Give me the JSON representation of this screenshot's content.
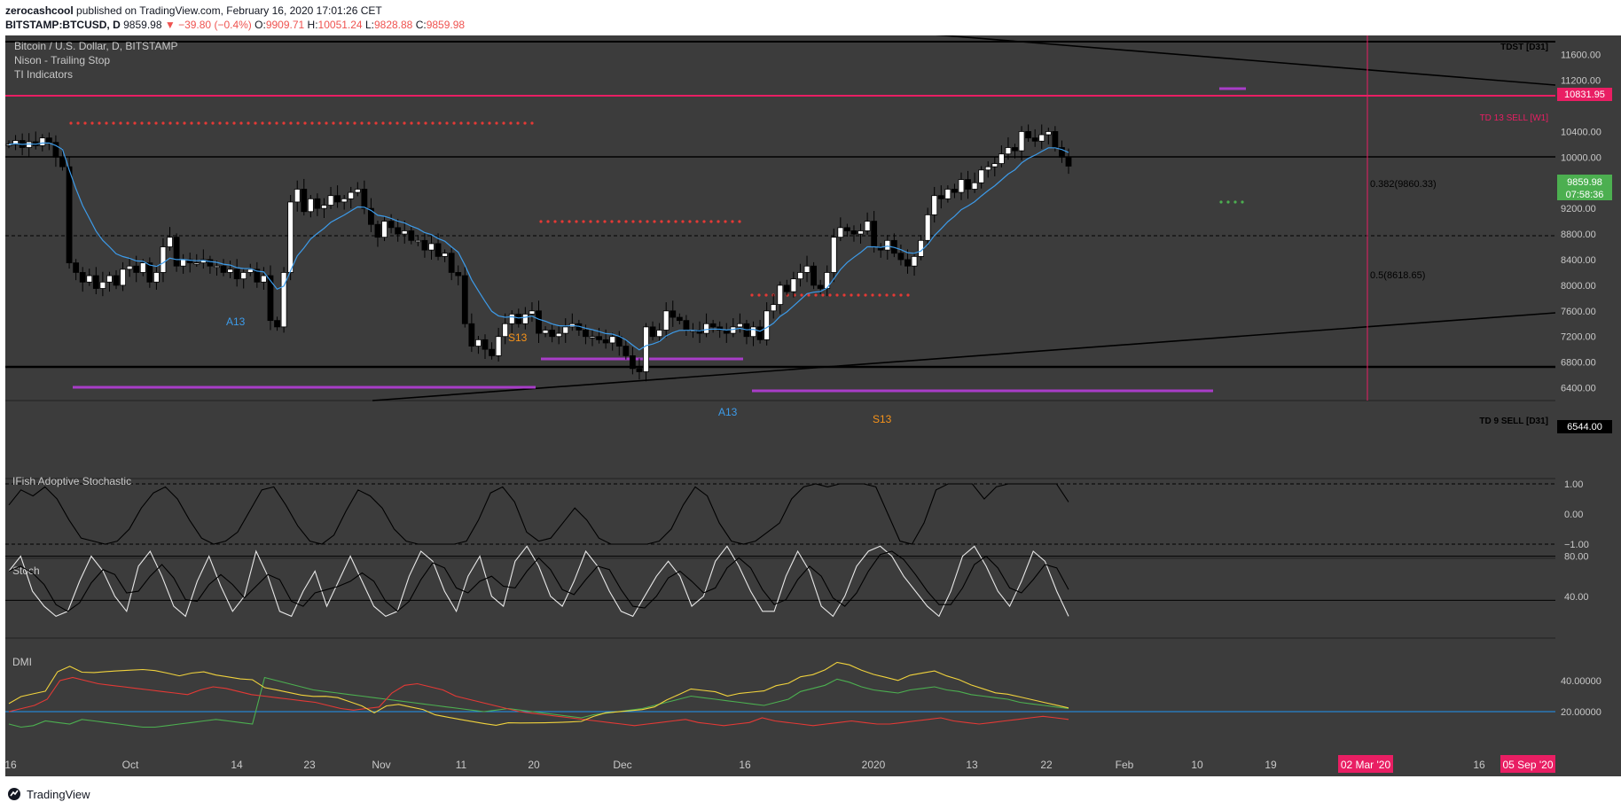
{
  "header": {
    "author": "zerocashcool",
    "published_text": "published on TradingView.com, February 16, 2020 17:01:26 CET",
    "symbol": "BITSTAMP:BTCUSD, D",
    "last": "9859.98",
    "change": "▼ −39.80 (−0.4%)",
    "o_label": "O:",
    "o": "9909.71",
    "h_label": "H:",
    "h": "10051.24",
    "l_label": "L:",
    "l": "9828.88",
    "c_label": "C:",
    "c": "9859.98"
  },
  "legend": {
    "title": "Bitcoin / U.S. Dollar, D, BITSTAMP",
    "line2": "Nison - Trailing Stop",
    "line3": "TI Indicators"
  },
  "panes": {
    "ifish": "IFish Adoptive Stochastic",
    "stoch": "Stoch",
    "dmi": "DMI"
  },
  "price_axis": [
    "11600.00",
    "11200.00",
    "10400.00",
    "10000.00",
    "9200.00",
    "8800.00",
    "8400.00",
    "8000.00",
    "7600.00",
    "7200.00",
    "6800.00",
    "6400.00"
  ],
  "ifish_axis": [
    "1.00",
    "0.00",
    "−1.00"
  ],
  "stoch_axis": [
    "80.00",
    "40.00"
  ],
  "dmi_axis": [
    "40.00000",
    "20.00000"
  ],
  "time_axis": [
    "16",
    "Oct",
    "14",
    "23",
    "Nov",
    "11",
    "20",
    "Dec",
    "16",
    "2020",
    "13",
    "22",
    "Feb",
    "10",
    "19",
    "16"
  ],
  "time_badges": [
    "02 Mar '20",
    "05 Sep '20"
  ],
  "price_badges": {
    "td13": "10831.95",
    "last": "9859.98",
    "countdown": "07:58:36",
    "td9": "6544.00"
  },
  "annotations": {
    "tdst": "TDST [D31]",
    "td13sell": "TD 13 SELL [W1]",
    "fib382": "0.382(9860.33)",
    "fib5": "0.5(8618.65)",
    "td9sell": "TD 9 SELL [D31]",
    "a13_1": "A13",
    "s13_1": "S13",
    "a13_2": "A13",
    "s13_2": "S13"
  },
  "colors": {
    "bg": "#3c3c3c",
    "grid": "#4a4a4a",
    "up": "#ffffff",
    "down": "#000000",
    "ema": "#3d9be9",
    "magenta": "#e91e63",
    "purple": "#a83dc8",
    "dots": "#e53935",
    "green": "#4caf50",
    "yellow": "#f0d23c",
    "orange": "#f7931a"
  },
  "chart_data": {
    "type": "candlestick",
    "title": "Bitcoin / U.S. Dollar, D, BITSTAMP",
    "ylim": [
      6200,
      11900
    ],
    "close": [
      10200,
      10260,
      10150,
      10240,
      10180,
      10300,
      10230,
      10000,
      9850,
      8350,
      8200,
      8050,
      8150,
      7950,
      8050,
      8150,
      8000,
      8250,
      8300,
      8200,
      8350,
      8050,
      8200,
      8600,
      8750,
      8300,
      8400,
      8350,
      8350,
      8400,
      8300,
      8300,
      8200,
      8250,
      8100,
      8200,
      8250,
      8050,
      8150,
      7450,
      7350,
      8200,
      9300,
      9500,
      9150,
      9350,
      9200,
      9250,
      9400,
      9300,
      9350,
      9450,
      9500,
      9200,
      8950,
      8750,
      9000,
      8900,
      8800,
      8850,
      8700,
      8700,
      8550,
      8650,
      8450,
      8500,
      8200,
      8150,
      7400,
      7050,
      7150,
      7000,
      6900,
      7200,
      7400,
      7550,
      7400,
      7550,
      7600,
      7250,
      7300,
      7200,
      7250,
      7350,
      7400,
      7300,
      7200,
      7200,
      7150,
      7100,
      7200,
      7050,
      6900,
      6700,
      6650,
      7350,
      7200,
      7300,
      7600,
      7500,
      7450,
      7300,
      7300,
      7250,
      7400,
      7350,
      7300,
      7250,
      7350,
      7400,
      7200,
      7350,
      7150,
      7600,
      7700,
      8000,
      7900,
      8100,
      8200,
      8300,
      8000,
      7950,
      8200,
      8750,
      8900,
      8850,
      8800,
      8850,
      9000,
      8600,
      8550,
      8700,
      8500,
      8400,
      8300,
      8450,
      8700,
      9100,
      9400,
      9350,
      9500,
      9450,
      9650,
      9500,
      9600,
      9800,
      9850,
      9900,
      10050,
      10150,
      10100,
      10400,
      10300,
      10250,
      10350,
      10400,
      10150,
      10000,
      9860
    ],
    "ifish": [
      0.3,
      0.8,
      0.6,
      0.9,
      0.5,
      -0.2,
      -0.8,
      -0.9,
      -1.0,
      -0.9,
      -0.5,
      0.2,
      0.7,
      0.9,
      0.5,
      -0.2,
      -0.8,
      -1.0,
      -0.9,
      -0.6,
      0.1,
      0.8,
      0.9,
      0.3,
      -0.4,
      -0.9,
      -1.0,
      -0.7,
      0.1,
      0.8,
      0.6,
      0.2,
      -0.5,
      -0.9,
      -1.0,
      -1.0,
      -1.0,
      -1.0,
      -0.9,
      -0.2,
      0.7,
      0.9,
      0.4,
      -0.6,
      -0.9,
      -0.8,
      -0.3,
      0.2,
      -0.2,
      -0.8,
      -1.0,
      -1.0,
      -1.0,
      -1.0,
      -0.9,
      -0.5,
      0.3,
      0.9,
      0.6,
      -0.3,
      -0.9,
      -1.0,
      -0.9,
      -0.6,
      -0.3,
      0.5,
      0.9,
      1.0,
      0.9,
      1.0,
      1.0,
      1.0,
      0.9,
      0.0,
      -0.9,
      -1.0,
      -0.3,
      0.8,
      1.0,
      1.0,
      1.0,
      0.5,
      0.9,
      1.0,
      1.0,
      1.0,
      1.0,
      1.0,
      0.4
    ],
    "stoch_k": [
      65,
      80,
      45,
      30,
      20,
      25,
      55,
      80,
      65,
      40,
      25,
      70,
      85,
      60,
      30,
      20,
      55,
      80,
      50,
      25,
      40,
      85,
      60,
      25,
      20,
      45,
      65,
      30,
      55,
      80,
      55,
      30,
      20,
      25,
      60,
      85,
      75,
      45,
      25,
      60,
      80,
      40,
      30,
      75,
      90,
      70,
      40,
      30,
      55,
      85,
      70,
      45,
      25,
      20,
      40,
      60,
      75,
      60,
      30,
      40,
      75,
      90,
      70,
      45,
      25,
      25,
      60,
      85,
      65,
      30,
      20,
      40,
      70,
      85,
      90,
      80,
      60,
      45,
      30,
      20,
      45,
      80,
      90,
      70,
      45,
      30,
      55,
      85,
      75,
      45,
      20
    ],
    "dmi_plus": [
      12,
      10,
      11,
      14,
      13,
      12,
      15,
      14,
      13,
      12,
      11,
      10,
      10,
      11,
      12,
      13,
      14,
      15,
      14,
      13,
      12,
      42,
      40,
      38,
      36,
      34,
      33,
      32,
      31,
      30,
      29,
      28,
      27,
      26,
      25,
      24,
      23,
      22,
      21,
      20,
      21,
      22,
      21,
      20,
      19,
      18,
      17,
      16,
      18,
      19,
      20,
      21,
      22,
      24,
      26,
      28,
      30,
      29,
      28,
      27,
      26,
      25,
      24,
      26,
      28,
      33,
      35,
      37,
      41,
      39,
      36,
      34,
      33,
      32,
      34,
      35,
      36,
      34,
      33,
      31,
      30,
      29,
      28,
      26,
      25,
      24,
      23,
      22
    ],
    "dmi_minus": [
      20,
      22,
      24,
      28,
      40,
      42,
      40,
      38,
      37,
      36,
      35,
      34,
      33,
      32,
      31,
      34,
      36,
      35,
      33,
      31,
      30,
      29,
      28,
      27,
      26,
      24,
      22,
      21,
      22,
      23,
      32,
      37,
      38,
      36,
      34,
      30,
      28,
      26,
      24,
      22,
      20,
      19,
      18,
      17,
      16,
      15,
      14,
      13,
      12,
      11,
      12,
      13,
      14,
      15,
      13,
      12,
      11,
      12,
      13,
      16,
      14,
      13,
      12,
      11,
      12,
      13,
      14,
      13,
      12,
      12,
      13,
      14,
      15,
      16,
      14,
      13,
      12,
      13,
      14,
      15,
      16,
      17,
      16,
      15
    ]
  }
}
